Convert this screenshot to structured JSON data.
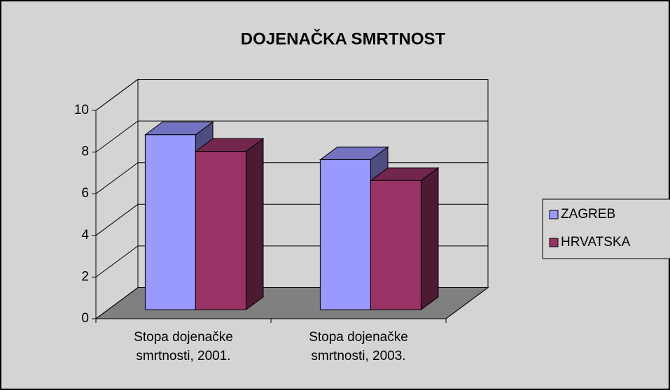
{
  "chart_data": {
    "type": "bar3d",
    "title": "DOJENAČKA SMRTNOST",
    "categories": [
      "Stopa dojenačke smrtnosti, 2001.",
      "Stopa dojenačke smrtnosti, 2003."
    ],
    "series": [
      {
        "name": "ZAGREB",
        "color": "#9999ff",
        "values": [
          8.4,
          7.2
        ]
      },
      {
        "name": "HRVATSKA",
        "color": "#993366",
        "values": [
          7.6,
          6.2
        ]
      }
    ],
    "ylim": [
      0,
      10
    ],
    "yticks": [
      0,
      2,
      4,
      6,
      8,
      10
    ],
    "grid": true,
    "legend": "right"
  }
}
